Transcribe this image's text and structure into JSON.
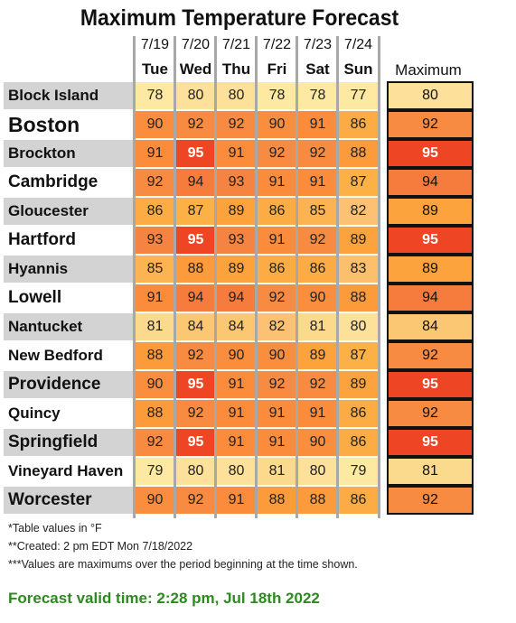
{
  "title": "Maximum Temperature Forecast",
  "max_header": "Maximum",
  "colors": {
    "77": "#fde9a1",
    "78": "#fde9a1",
    "79": "#fde9a1",
    "80": "#fde09a",
    "81": "#fbd98d",
    "82": "#fcc173",
    "83": "#fcbf6c",
    "84": "#fcc773",
    "85": "#fcb351",
    "86": "#fcac45",
    "87": "#fcb146",
    "88": "#fb9b3c",
    "89": "#fca33d",
    "90": "#f88e3e",
    "91": "#fa8c3c",
    "92": "#f68b41",
    "93": "#f58342",
    "94": "#f57c3c",
    "95": "#ee4524",
    "label_even": "#d3d3d3",
    "label_odd": "#ffffff"
  },
  "chart_data": {
    "type": "table",
    "title": "Maximum Temperature Forecast",
    "columns": [
      {
        "date": "7/19",
        "day": "Tue"
      },
      {
        "date": "7/20",
        "day": "Wed"
      },
      {
        "date": "7/21",
        "day": "Thu"
      },
      {
        "date": "7/22",
        "day": "Fri"
      },
      {
        "date": "7/23",
        "day": "Sat"
      },
      {
        "date": "7/24",
        "day": "Sun"
      }
    ],
    "rows": [
      {
        "city": "Block Island",
        "values": [
          78,
          80,
          80,
          78,
          78,
          77
        ],
        "maximum": 80
      },
      {
        "city": "Boston",
        "values": [
          90,
          92,
          92,
          90,
          91,
          86
        ],
        "maximum": 92
      },
      {
        "city": "Brockton",
        "values": [
          91,
          95,
          91,
          92,
          92,
          88
        ],
        "maximum": 95
      },
      {
        "city": "Cambridge",
        "values": [
          92,
          94,
          93,
          91,
          91,
          87
        ],
        "maximum": 94
      },
      {
        "city": "Gloucester",
        "values": [
          86,
          87,
          89,
          86,
          85,
          82
        ],
        "maximum": 89
      },
      {
        "city": "Hartford",
        "values": [
          93,
          95,
          93,
          91,
          92,
          89
        ],
        "maximum": 95
      },
      {
        "city": "Hyannis",
        "values": [
          85,
          88,
          89,
          86,
          86,
          83
        ],
        "maximum": 89
      },
      {
        "city": "Lowell",
        "values": [
          91,
          94,
          94,
          92,
          90,
          88
        ],
        "maximum": 94
      },
      {
        "city": "Nantucket",
        "values": [
          81,
          84,
          84,
          82,
          81,
          80
        ],
        "maximum": 84
      },
      {
        "city": "New Bedford",
        "values": [
          88,
          92,
          90,
          90,
          89,
          87
        ],
        "maximum": 92
      },
      {
        "city": "Providence",
        "values": [
          90,
          95,
          91,
          92,
          92,
          89
        ],
        "maximum": 95
      },
      {
        "city": "Quincy",
        "values": [
          88,
          92,
          91,
          91,
          91,
          86
        ],
        "maximum": 92
      },
      {
        "city": "Springfield",
        "values": [
          92,
          95,
          91,
          91,
          90,
          86
        ],
        "maximum": 95
      },
      {
        "city": "Vineyard Haven",
        "values": [
          79,
          80,
          80,
          81,
          80,
          79
        ],
        "maximum": 81
      },
      {
        "city": "Worcester",
        "values": [
          90,
          92,
          91,
          88,
          88,
          86
        ],
        "maximum": 92
      }
    ],
    "units": "°F"
  },
  "notes": [
    "*Table values in °F",
    "**Created: 2 pm EDT Mon 7/18/2022",
    "***Values are maximums over the period beginning at the time shown."
  ],
  "valid_time": "Forecast valid time: 2:28 pm, Jul 18th 2022"
}
